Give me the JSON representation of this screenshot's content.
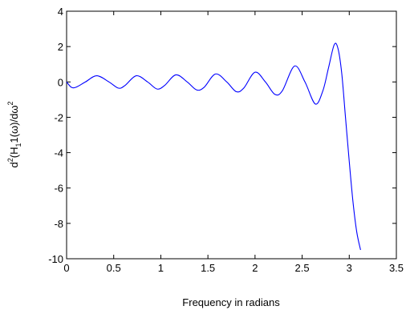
{
  "chart_data": {
    "type": "line",
    "title": "",
    "xlabel": "Frequency in radians",
    "ylabel": {
      "parts": [
        {
          "text": "d",
          "style": "normal"
        },
        {
          "text": "2",
          "style": "sup"
        },
        {
          "text": "(H",
          "style": "normal"
        },
        {
          "text": "1",
          "style": "sub"
        },
        {
          "text": "1(ω)/dω",
          "style": "normal"
        },
        {
          "text": "2",
          "style": "sup"
        }
      ]
    },
    "xlim": [
      0,
      3.5
    ],
    "ylim": [
      -10,
      4
    ],
    "xticks": [
      0,
      0.5,
      1,
      1.5,
      2,
      2.5,
      3,
      3.5
    ],
    "xtick_labels": [
      "0",
      "0.5",
      "1",
      "1.5",
      "2",
      "2.5",
      "3",
      "3.5"
    ],
    "yticks": [
      4,
      2,
      0,
      -2,
      -4,
      -6,
      -8,
      -10
    ],
    "ytick_labels": [
      "4",
      "2",
      "0",
      "-2",
      "-4",
      "-6",
      "-8",
      "-10"
    ],
    "grid": false,
    "line_color": "#0000ff",
    "series": [
      {
        "x": [
          0,
          0.05,
          0.1,
          0.2,
          0.32,
          0.45,
          0.55,
          0.62,
          0.74,
          0.86,
          0.96,
          1.04,
          1.16,
          1.28,
          1.38,
          1.46,
          1.58,
          1.7,
          1.8,
          1.88,
          2.0,
          2.11,
          2.21,
          2.29,
          2.42,
          2.53,
          2.64,
          2.72,
          2.78,
          2.84,
          2.88,
          2.92,
          2.96,
          3.0,
          3.04,
          3.08,
          3.12
        ],
        "y": [
          0.0,
          -0.3,
          -0.3,
          0.0,
          0.35,
          0.0,
          -0.35,
          -0.2,
          0.35,
          0.0,
          -0.4,
          -0.2,
          0.4,
          0.0,
          -0.45,
          -0.3,
          0.45,
          0.0,
          -0.55,
          -0.35,
          0.55,
          0.0,
          -0.7,
          -0.5,
          0.9,
          0.0,
          -1.25,
          -0.5,
          0.8,
          2.1,
          1.9,
          0.5,
          -2.0,
          -4.5,
          -6.8,
          -8.5,
          -9.5
        ]
      }
    ]
  }
}
